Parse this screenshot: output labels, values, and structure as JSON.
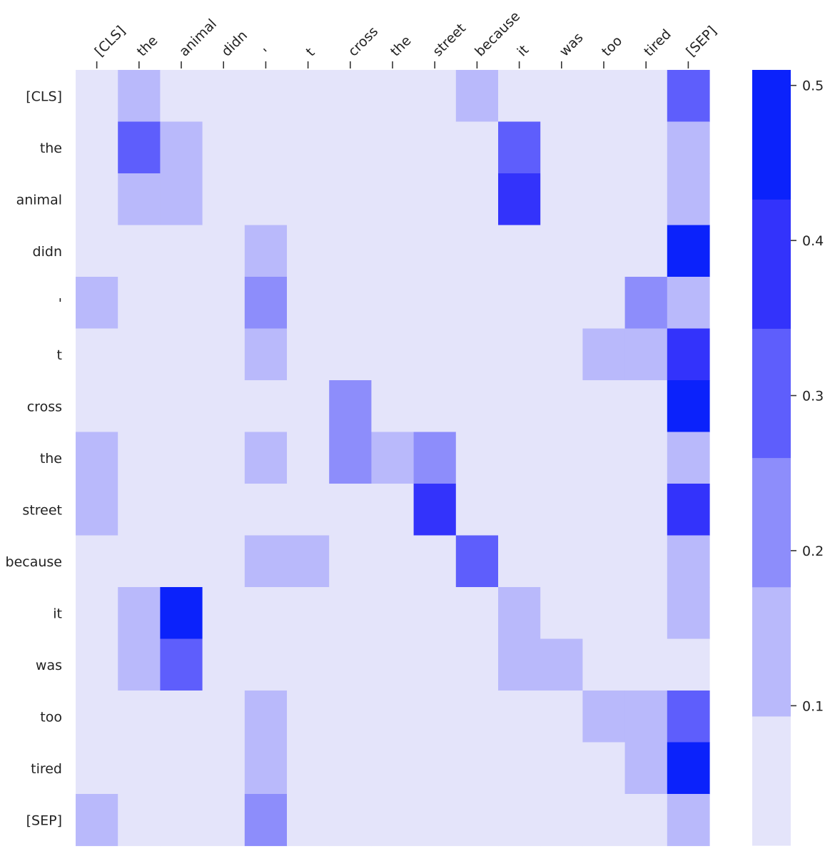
{
  "chart_data": {
    "type": "heatmap",
    "x_tokens": [
      "[CLS]",
      "the",
      "animal",
      "didn",
      "'",
      "t",
      "cross",
      "the",
      "street",
      "because",
      "it",
      "was",
      "too",
      "tired",
      "[SEP]"
    ],
    "y_tokens": [
      "[CLS]",
      "the",
      "animal",
      "didn",
      "'",
      "t",
      "cross",
      "the",
      "street",
      "because",
      "it",
      "was",
      "too",
      "tired",
      "[SEP]"
    ],
    "matrix": [
      [
        0.0,
        0.12,
        0.0,
        0.0,
        0.0,
        0.0,
        0.0,
        0.0,
        0.0,
        0.12,
        0.0,
        0.0,
        0.0,
        0.0,
        0.31
      ],
      [
        0.0,
        0.32,
        0.12,
        0.0,
        0.0,
        0.0,
        0.0,
        0.0,
        0.0,
        0.0,
        0.3,
        0.0,
        0.0,
        0.0,
        0.13
      ],
      [
        0.0,
        0.12,
        0.12,
        0.0,
        0.0,
        0.0,
        0.0,
        0.0,
        0.0,
        0.0,
        0.4,
        0.0,
        0.0,
        0.0,
        0.13
      ],
      [
        0.0,
        0.0,
        0.0,
        0.0,
        0.12,
        0.0,
        0.0,
        0.0,
        0.0,
        0.0,
        0.0,
        0.0,
        0.0,
        0.0,
        0.48
      ],
      [
        0.12,
        0.0,
        0.0,
        0.0,
        0.21,
        0.0,
        0.0,
        0.0,
        0.0,
        0.0,
        0.0,
        0.0,
        0.0,
        0.22,
        0.13
      ],
      [
        0.0,
        0.0,
        0.0,
        0.0,
        0.12,
        0.0,
        0.0,
        0.0,
        0.0,
        0.0,
        0.0,
        0.0,
        0.13,
        0.13,
        0.39
      ],
      [
        0.0,
        0.0,
        0.0,
        0.0,
        0.0,
        0.0,
        0.21,
        0.0,
        0.0,
        0.0,
        0.0,
        0.0,
        0.0,
        0.0,
        0.48
      ],
      [
        0.12,
        0.0,
        0.0,
        0.0,
        0.12,
        0.0,
        0.21,
        0.12,
        0.22,
        0.0,
        0.0,
        0.0,
        0.0,
        0.0,
        0.13
      ],
      [
        0.12,
        0.0,
        0.0,
        0.0,
        0.0,
        0.0,
        0.0,
        0.0,
        0.4,
        0.0,
        0.0,
        0.0,
        0.0,
        0.0,
        0.39
      ],
      [
        0.0,
        0.0,
        0.0,
        0.0,
        0.12,
        0.12,
        0.0,
        0.0,
        0.0,
        0.31,
        0.0,
        0.0,
        0.0,
        0.0,
        0.13
      ],
      [
        0.0,
        0.12,
        0.48,
        0.0,
        0.0,
        0.0,
        0.0,
        0.0,
        0.0,
        0.0,
        0.13,
        0.0,
        0.0,
        0.0,
        0.13
      ],
      [
        0.0,
        0.12,
        0.33,
        0.0,
        0.0,
        0.0,
        0.0,
        0.0,
        0.0,
        0.0,
        0.13,
        0.13,
        0.0,
        0.0,
        0.0
      ],
      [
        0.0,
        0.0,
        0.0,
        0.0,
        0.12,
        0.0,
        0.0,
        0.0,
        0.0,
        0.0,
        0.0,
        0.0,
        0.13,
        0.13,
        0.31
      ],
      [
        0.0,
        0.0,
        0.0,
        0.0,
        0.12,
        0.0,
        0.0,
        0.0,
        0.0,
        0.0,
        0.0,
        0.0,
        0.0,
        0.13,
        0.48
      ],
      [
        0.12,
        0.0,
        0.0,
        0.0,
        0.21,
        0.0,
        0.0,
        0.0,
        0.0,
        0.0,
        0.0,
        0.0,
        0.0,
        0.0,
        0.13
      ]
    ],
    "colorbar": {
      "range": [
        0.01,
        0.51
      ],
      "levels": 6,
      "ticks": [
        0.1,
        0.2,
        0.3,
        0.4,
        0.5
      ],
      "tick_labels": [
        "0.1",
        "0.2",
        "0.3",
        "0.4",
        "0.5"
      ],
      "colors": [
        "#e4e4fa",
        "#b9b9fb",
        "#8d8dfb",
        "#5e5efc",
        "#3333fb",
        "#0b22fb"
      ]
    },
    "x_tick_rotation": "45-degree",
    "grid": false,
    "title": "",
    "xlabel": "",
    "ylabel": ""
  }
}
